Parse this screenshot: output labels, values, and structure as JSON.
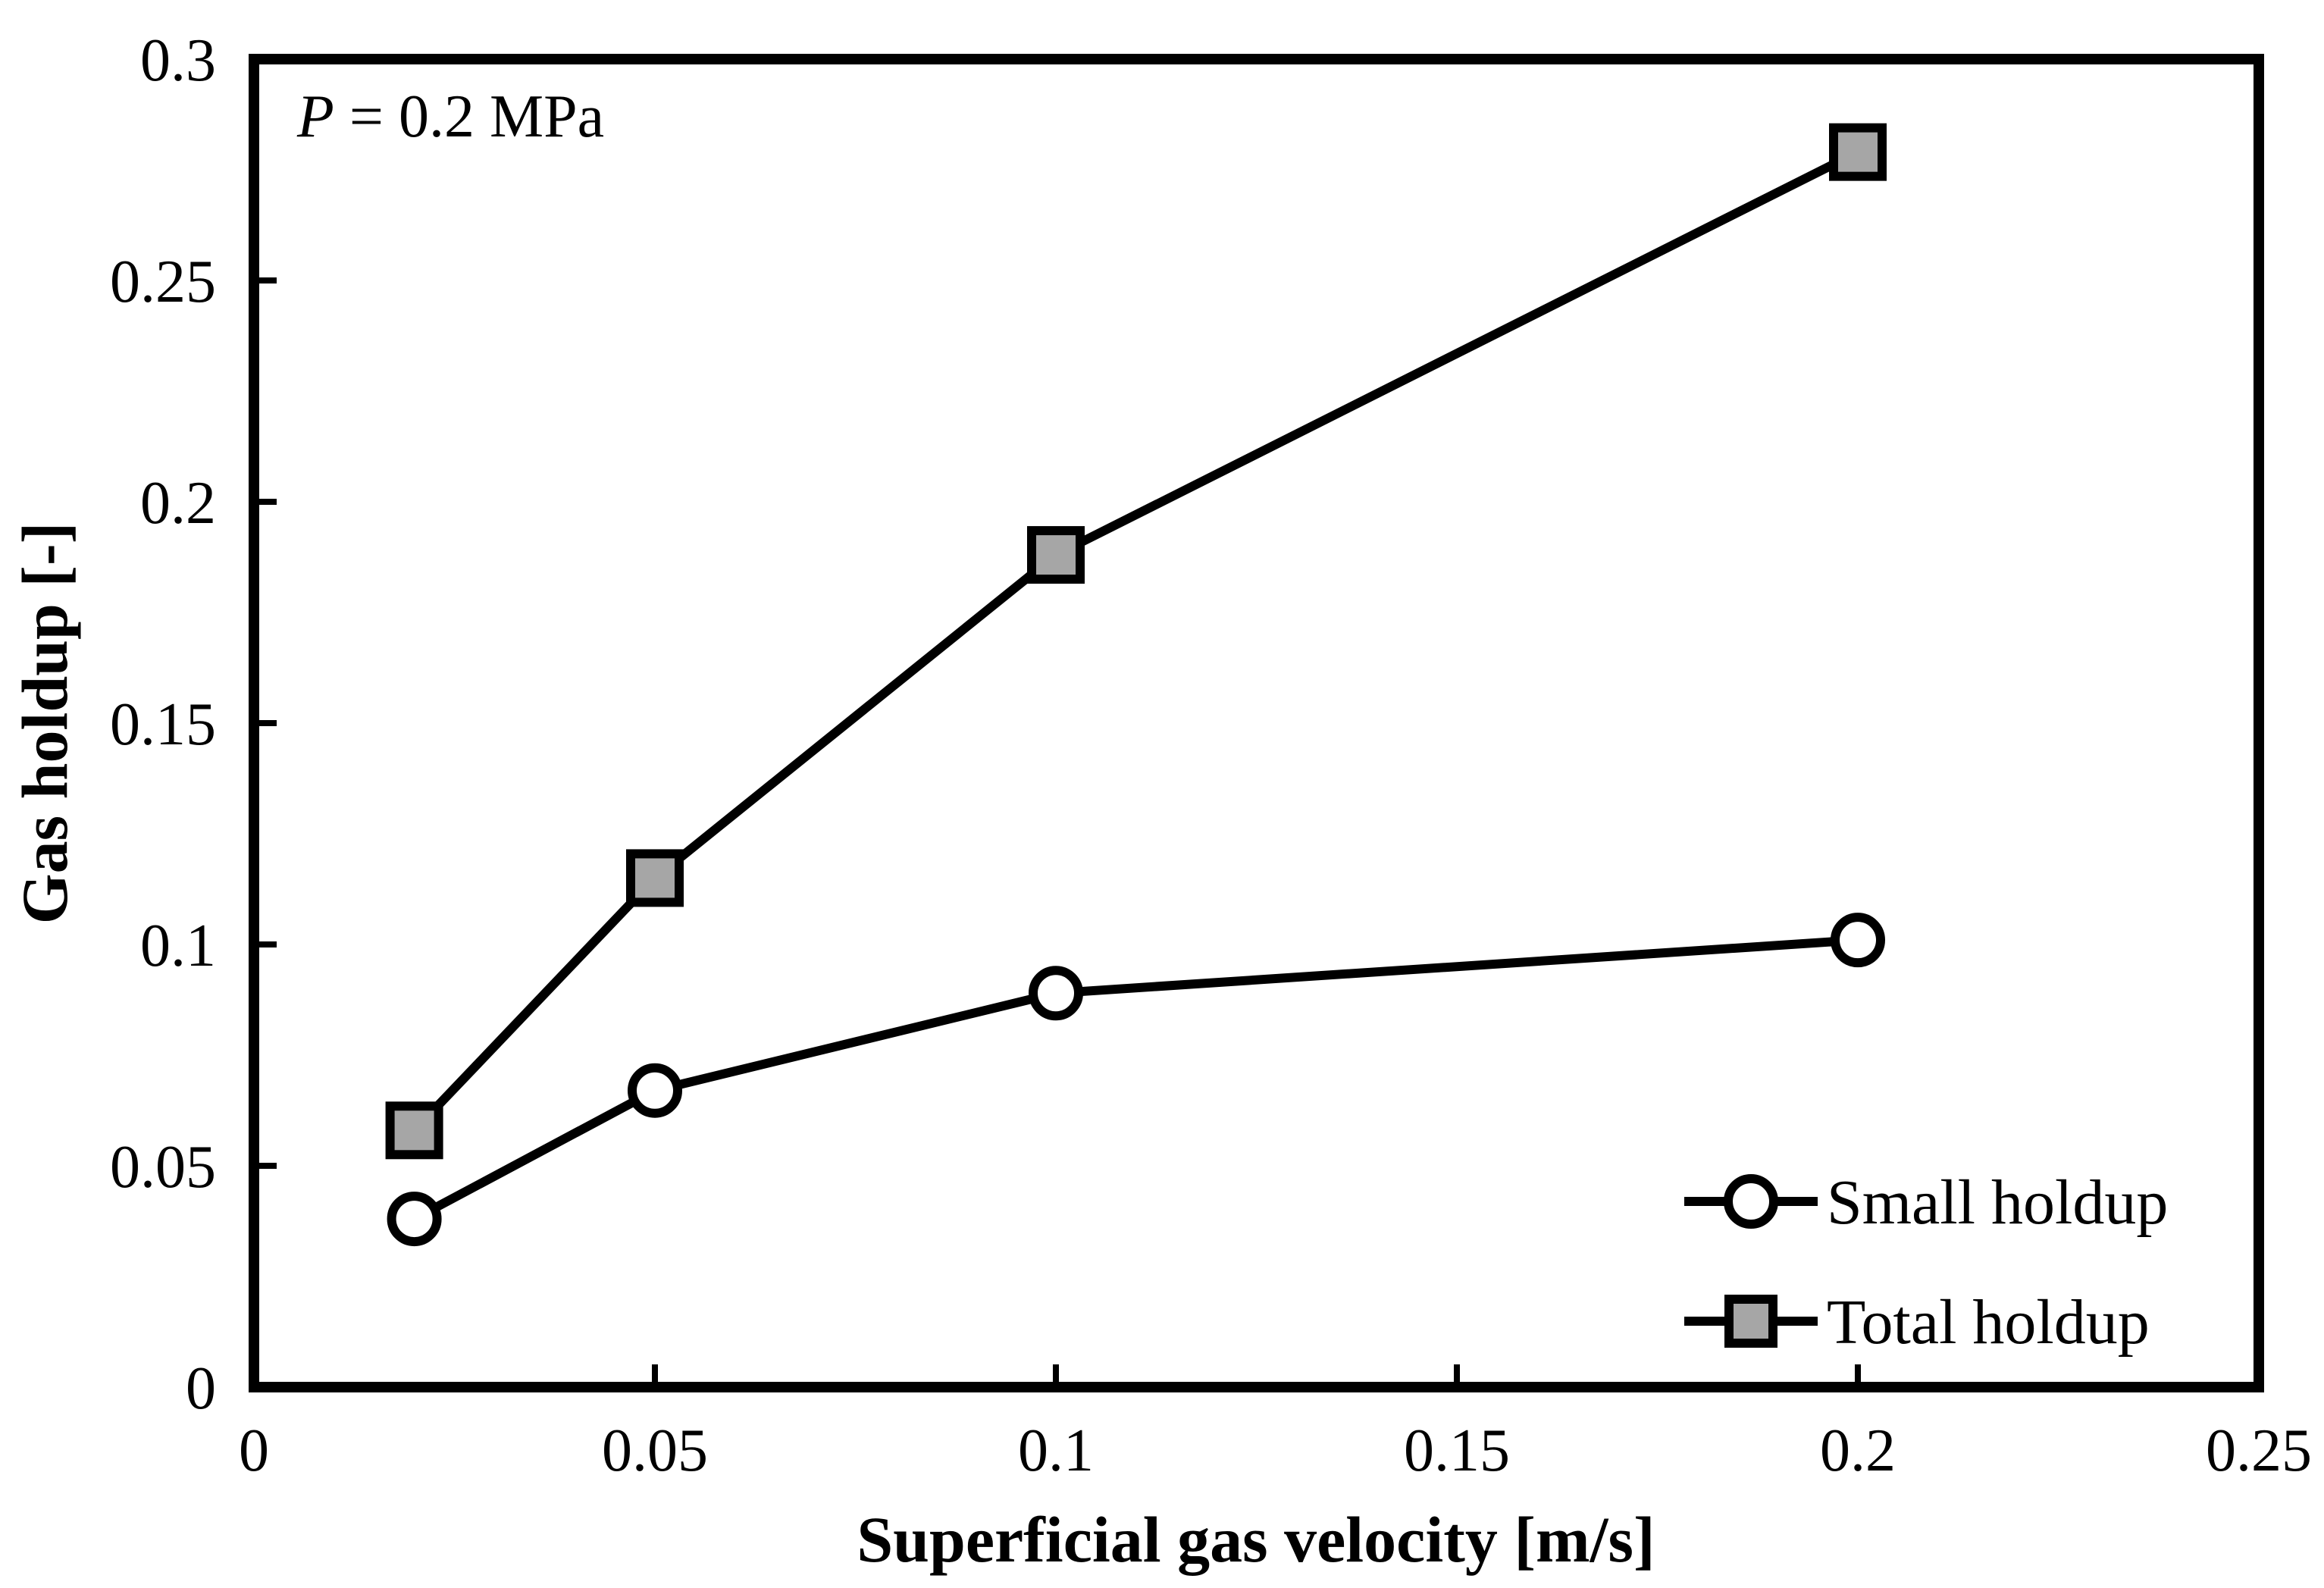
{
  "chart_data": {
    "type": "line",
    "title": "",
    "annotation": {
      "variable": "P",
      "rest": " = 0.2 MPa"
    },
    "xlabel": "Superficial gas velocity [m/s]",
    "ylabel": "Gas holdup [-]",
    "xlim": [
      0,
      0.25
    ],
    "ylim": [
      0,
      0.3
    ],
    "xticks": [
      "0",
      "0.05",
      "0.1",
      "0.15",
      "0.2",
      "0.25"
    ],
    "yticks": [
      "0",
      "0.05",
      "0.1",
      "0.15",
      "0.2",
      "0.25",
      "0.3"
    ],
    "grid": false,
    "legend_position": "bottom-right",
    "series": [
      {
        "name": "Small holdup",
        "marker": "circle",
        "fill": "#ffffff",
        "x": [
          0.02,
          0.05,
          0.1,
          0.2
        ],
        "y": [
          0.038,
          0.067,
          0.089,
          0.101
        ]
      },
      {
        "name": "Total holdup",
        "marker": "square",
        "fill": "#a6a6a6",
        "x": [
          0.02,
          0.05,
          0.1,
          0.2
        ],
        "y": [
          0.058,
          0.115,
          0.188,
          0.279
        ]
      }
    ]
  }
}
